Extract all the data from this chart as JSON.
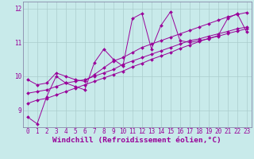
{
  "xlabel": "Windchill (Refroidissement éolien,°C)",
  "background_color": "#c8eaea",
  "plot_color": "#990099",
  "grid_color": "#aacccc",
  "spine_color": "#8888aa",
  "series": [
    [
      8.8,
      8.6,
      9.4,
      10.0,
      9.8,
      9.7,
      9.6,
      10.4,
      10.8,
      10.5,
      10.3,
      11.7,
      11.85,
      10.8,
      11.5,
      11.9,
      11.05,
      11.0,
      11.05,
      11.1,
      11.2,
      11.7,
      11.85,
      11.3
    ],
    [
      9.9,
      9.75,
      9.8,
      10.1,
      10.0,
      9.9,
      9.85,
      10.05,
      10.25,
      10.45,
      10.55,
      10.7,
      10.85,
      10.95,
      11.05,
      11.15,
      11.25,
      11.35,
      11.45,
      11.55,
      11.65,
      11.75,
      11.82,
      11.88
    ],
    [
      9.5,
      9.55,
      9.6,
      9.7,
      9.8,
      9.85,
      9.9,
      10.0,
      10.1,
      10.2,
      10.35,
      10.45,
      10.55,
      10.65,
      10.75,
      10.85,
      10.95,
      11.05,
      11.1,
      11.18,
      11.25,
      11.32,
      11.4,
      11.45
    ],
    [
      9.2,
      9.3,
      9.35,
      9.45,
      9.55,
      9.65,
      9.75,
      9.85,
      9.95,
      10.05,
      10.15,
      10.28,
      10.38,
      10.5,
      10.6,
      10.7,
      10.82,
      10.92,
      11.02,
      11.12,
      11.18,
      11.26,
      11.33,
      11.4
    ]
  ],
  "xlim": [
    0,
    23
  ],
  "ylim": [
    8.5,
    12.2
  ],
  "yticks": [
    9,
    10,
    11,
    12
  ],
  "xticks": [
    0,
    1,
    2,
    3,
    4,
    5,
    6,
    7,
    8,
    9,
    10,
    11,
    12,
    13,
    14,
    15,
    16,
    17,
    18,
    19,
    20,
    21,
    22,
    23
  ],
  "tick_fontsize": 5.5,
  "xlabel_fontsize": 6.8,
  "marker": "D",
  "markersize": 2.0,
  "linewidth": 0.7
}
